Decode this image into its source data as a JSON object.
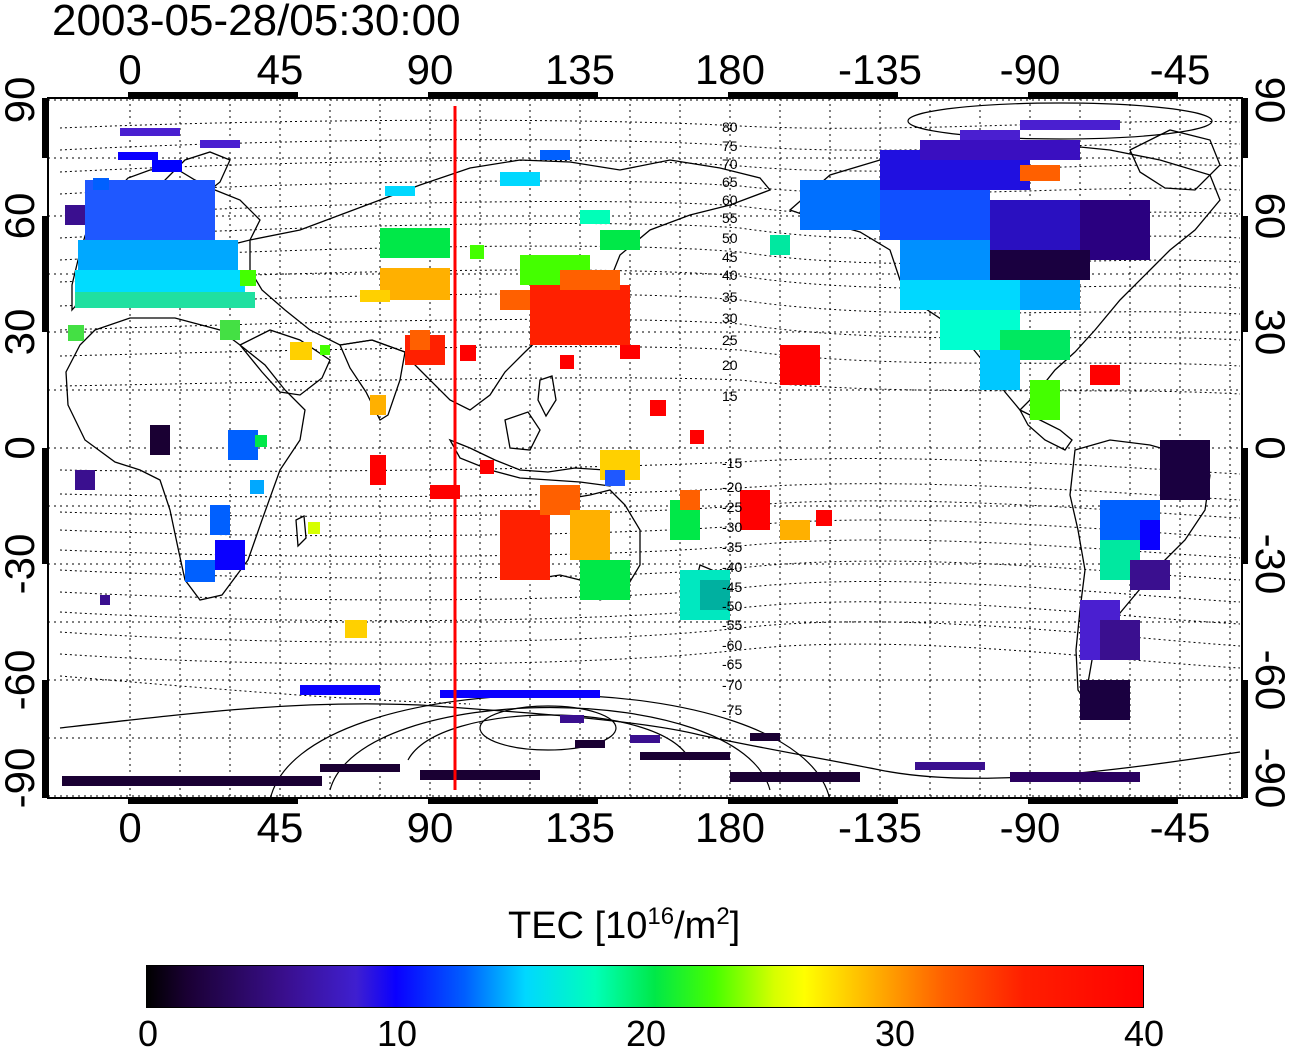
{
  "timestamp": "2003-05-28/05:30:00",
  "longitude_ticks": [
    "0",
    "45",
    "90",
    "135",
    "180",
    "-135",
    "-90",
    "-45"
  ],
  "latitude_ticks": [
    "90",
    "60",
    "30",
    "0",
    "-30",
    "-60",
    "-90"
  ],
  "contour_labels": [
    "80",
    "75",
    "70",
    "65",
    "60",
    "55",
    "50",
    "45",
    "40",
    "35",
    "30",
    "25",
    "20",
    "15",
    "-15",
    "-20",
    "-25",
    "-30",
    "-35",
    "-40",
    "-45",
    "-50",
    "-55",
    "-60",
    "-65",
    "-70",
    "-75"
  ],
  "marker_longitude": 97.5,
  "colorbar": {
    "title_prefix": "TEC  [10",
    "title_exp1": "16",
    "title_mid": "/m",
    "title_exp2": "2",
    "title_suffix": "]",
    "tick_labels": [
      "0",
      "10",
      "20",
      "30",
      "40"
    ],
    "range": [
      0,
      40
    ]
  },
  "colors": {
    "marker_line": "#ff0000",
    "frame": "#000000"
  }
}
